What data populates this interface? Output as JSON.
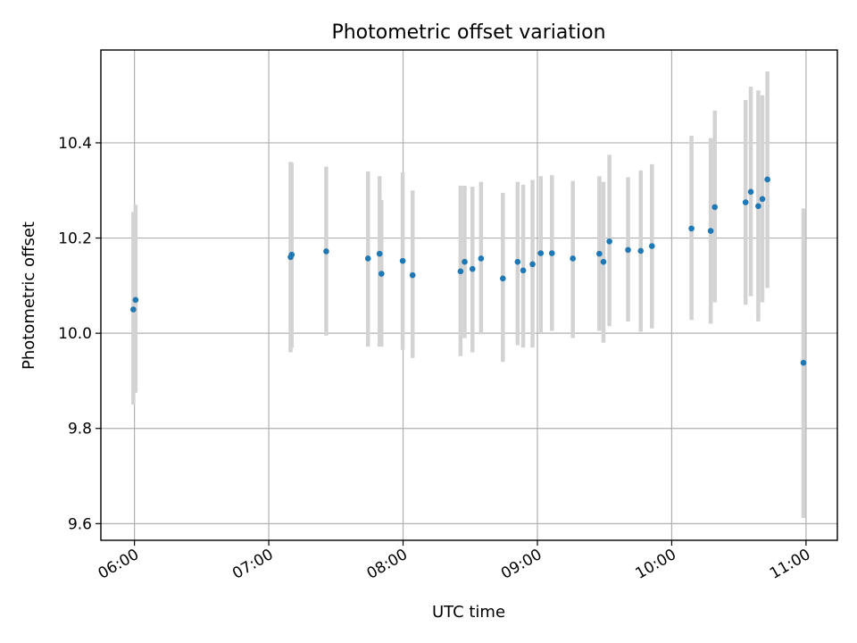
{
  "chart_data": {
    "type": "scatter",
    "title": "Photometric offset variation",
    "xlabel": "UTC time",
    "ylabel": "Photometric offset",
    "xlim": [
      "05:45",
      "11:14"
    ],
    "ylim": [
      9.565,
      10.595
    ],
    "xticks": [
      "06:00",
      "07:00",
      "08:00",
      "09:00",
      "10:00",
      "11:00"
    ],
    "yticks": [
      9.6,
      9.8,
      10.0,
      10.2,
      10.4
    ],
    "ytick_labels": [
      "9.6",
      "9.8",
      "10.0",
      "10.2",
      "10.4"
    ],
    "grid": true,
    "colors": {
      "point": "#1f77b4",
      "errorbar": "#d3d3d3"
    },
    "series": [
      {
        "points": [
          {
            "t": "05:59:30",
            "y": 10.05,
            "ylo": 9.85,
            "yhi": 10.255
          },
          {
            "t": "06:00:30",
            "y": 10.07,
            "ylo": 9.875,
            "yhi": 10.27
          },
          {
            "t": "07:09:45",
            "y": 10.16,
            "ylo": 9.96,
            "yhi": 10.36
          },
          {
            "t": "07:10:15",
            "y": 10.165,
            "ylo": 9.97,
            "yhi": 10.358
          },
          {
            "t": "07:25:40",
            "y": 10.172,
            "ylo": 9.995,
            "yhi": 10.35
          },
          {
            "t": "07:44:20",
            "y": 10.157,
            "ylo": 9.972,
            "yhi": 10.34
          },
          {
            "t": "07:49:30",
            "y": 10.167,
            "ylo": 9.972,
            "yhi": 10.33
          },
          {
            "t": "07:50:20",
            "y": 10.125,
            "ylo": 9.972,
            "yhi": 10.28
          },
          {
            "t": "07:59:50",
            "y": 10.152,
            "ylo": 9.965,
            "yhi": 10.338
          },
          {
            "t": "08:04:15",
            "y": 10.122,
            "ylo": 9.948,
            "yhi": 10.3
          },
          {
            "t": "08:25:40",
            "y": 10.13,
            "ylo": 9.952,
            "yhi": 10.31
          },
          {
            "t": "08:27:30",
            "y": 10.15,
            "ylo": 9.99,
            "yhi": 10.31
          },
          {
            "t": "08:31:00",
            "y": 10.135,
            "ylo": 9.96,
            "yhi": 10.308
          },
          {
            "t": "08:34:50",
            "y": 10.157,
            "ylo": 9.998,
            "yhi": 10.318
          },
          {
            "t": "08:44:35",
            "y": 10.115,
            "ylo": 9.94,
            "yhi": 10.295
          },
          {
            "t": "08:51:10",
            "y": 10.15,
            "ylo": 9.975,
            "yhi": 10.318
          },
          {
            "t": "08:53:40",
            "y": 10.132,
            "ylo": 9.97,
            "yhi": 10.312
          },
          {
            "t": "08:57:50",
            "y": 10.145,
            "ylo": 9.97,
            "yhi": 10.322
          },
          {
            "t": "09:01:30",
            "y": 10.168,
            "ylo": 10.0,
            "yhi": 10.33
          },
          {
            "t": "09:06:30",
            "y": 10.168,
            "ylo": 10.005,
            "yhi": 10.332
          },
          {
            "t": "09:15:50",
            "y": 10.157,
            "ylo": 9.99,
            "yhi": 10.32
          },
          {
            "t": "09:27:40",
            "y": 10.167,
            "ylo": 10.005,
            "yhi": 10.33
          },
          {
            "t": "09:29:30",
            "y": 10.15,
            "ylo": 9.98,
            "yhi": 10.318
          },
          {
            "t": "09:32:10",
            "y": 10.193,
            "ylo": 10.015,
            "yhi": 10.375
          },
          {
            "t": "09:40:30",
            "y": 10.175,
            "ylo": 10.025,
            "yhi": 10.328
          },
          {
            "t": "09:46:10",
            "y": 10.173,
            "ylo": 10.003,
            "yhi": 10.342
          },
          {
            "t": "09:51:10",
            "y": 10.183,
            "ylo": 10.01,
            "yhi": 10.355
          },
          {
            "t": "10:08:50",
            "y": 10.22,
            "ylo": 10.028,
            "yhi": 10.415
          },
          {
            "t": "10:17:25",
            "y": 10.215,
            "ylo": 10.02,
            "yhi": 10.41
          },
          {
            "t": "10:19:15",
            "y": 10.265,
            "ylo": 10.065,
            "yhi": 10.468
          },
          {
            "t": "10:33:00",
            "y": 10.275,
            "ylo": 10.06,
            "yhi": 10.49
          },
          {
            "t": "10:35:20",
            "y": 10.297,
            "ylo": 10.078,
            "yhi": 10.518
          },
          {
            "t": "10:38:40",
            "y": 10.267,
            "ylo": 10.025,
            "yhi": 10.51
          },
          {
            "t": "10:40:30",
            "y": 10.282,
            "ylo": 10.065,
            "yhi": 10.5
          },
          {
            "t": "10:42:45",
            "y": 10.323,
            "ylo": 10.095,
            "yhi": 10.55
          },
          {
            "t": "10:58:50",
            "y": 9.938,
            "ylo": 9.612,
            "yhi": 10.262
          }
        ]
      }
    ]
  }
}
